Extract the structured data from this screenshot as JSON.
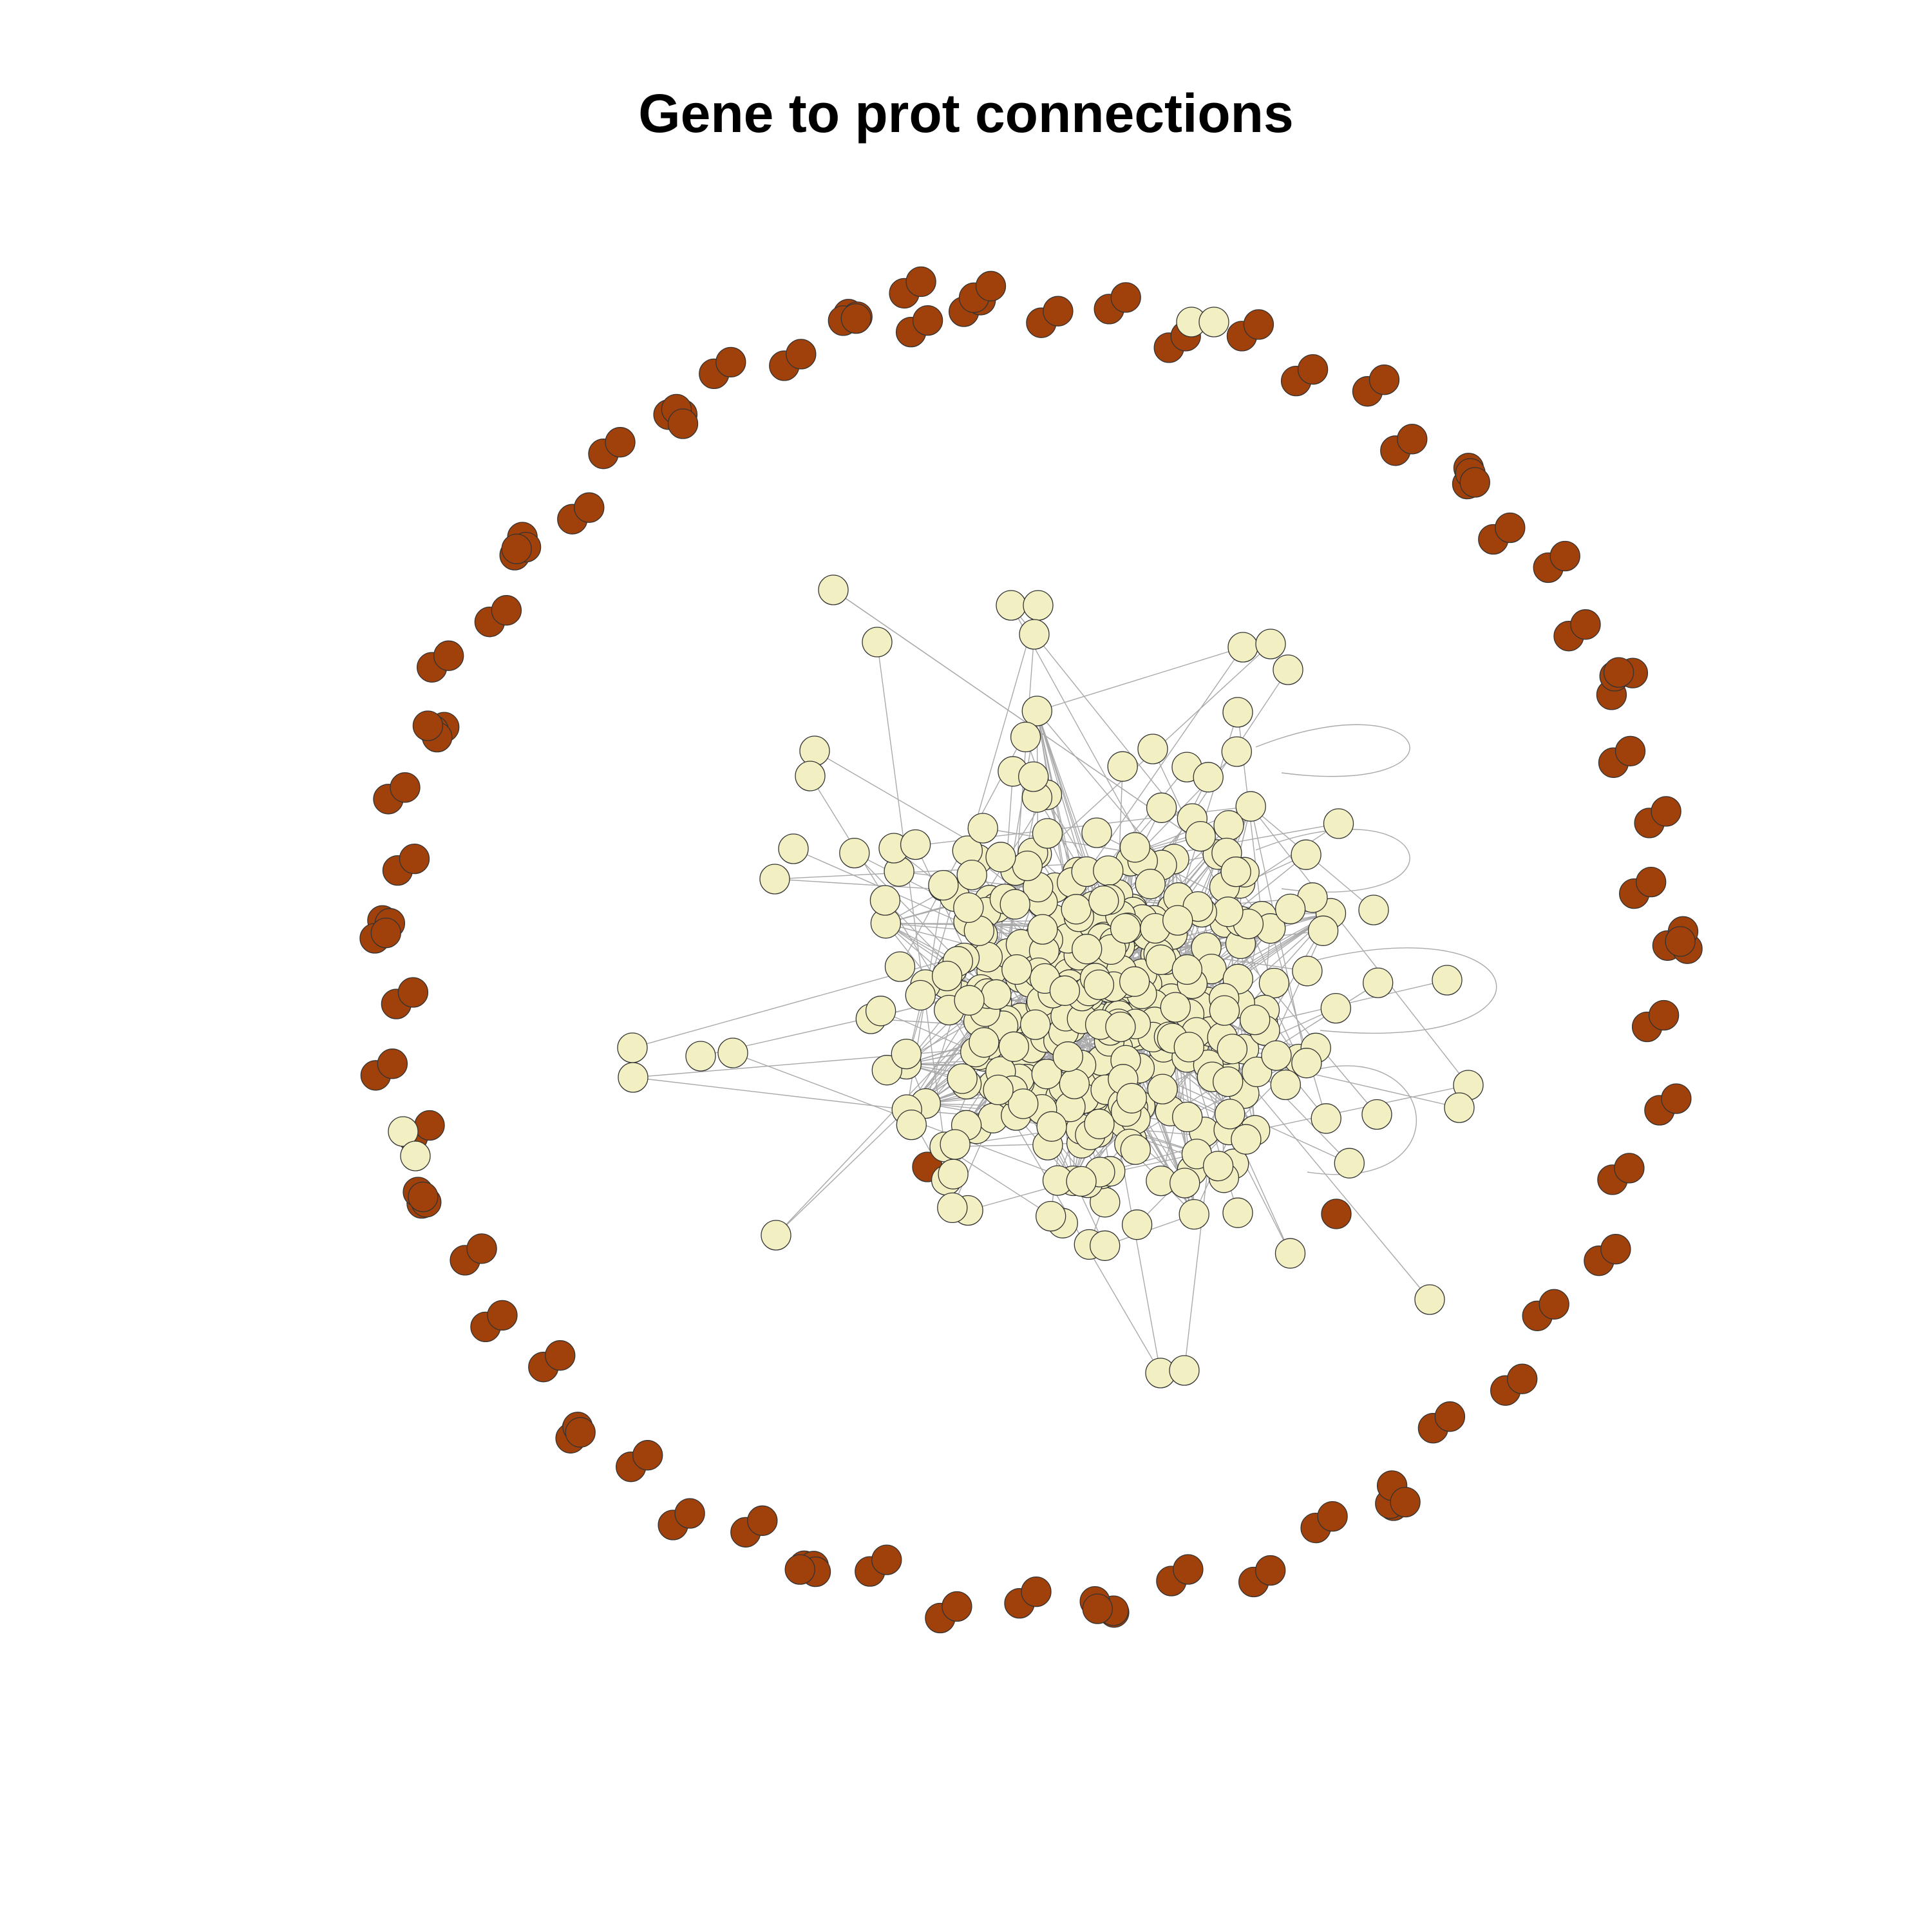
{
  "title": "Gene to prot connections",
  "colors": {
    "background": "#ffffff",
    "connected_node": "#f2f0c2",
    "isolated_node": "#a0400a",
    "node_outline": "#333333",
    "edge": "#a9a9a9",
    "title": "#000000"
  },
  "graph": {
    "layout": "force-directed",
    "connected_component_color": "#f2f0c2",
    "isolated_node_color": "#a0400a",
    "isolated_nodes_arranged": "ring around the central component",
    "self_loops": true
  }
}
